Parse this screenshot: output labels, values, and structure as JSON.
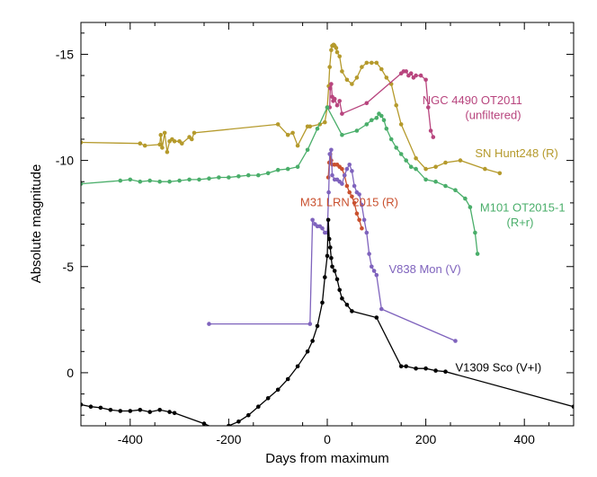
{
  "chart_data": {
    "type": "line",
    "title": "",
    "xlabel": "Days from maximum",
    "ylabel": "Absolute magnitude",
    "xlim": [
      -500,
      500
    ],
    "ylim": [
      2.5,
      -16.5
    ],
    "y_axis_inverted": true,
    "grid": false,
    "x_ticks": [
      -400,
      -200,
      0,
      200,
      400
    ],
    "x_tick_labels": [
      "-400",
      "-200",
      "0",
      "200",
      "400"
    ],
    "y_ticks": [
      -15,
      -10,
      -5,
      0
    ],
    "y_tick_labels": [
      "-15",
      "-10",
      "-5",
      "0"
    ],
    "series": [
      {
        "name": "SN Hunt248 (R)",
        "color": "#b59a2c",
        "markers": true,
        "x": [
          -500,
          -380,
          -370,
          -340,
          -338,
          -335,
          -330,
          -325,
          -320,
          -315,
          -310,
          -300,
          -295,
          -280,
          -275,
          -270,
          -100,
          -80,
          -70,
          -60,
          -40,
          -35,
          -15,
          -5,
          0,
          3,
          5,
          8,
          10,
          13,
          15,
          18,
          20,
          25,
          30,
          40,
          50,
          60,
          70,
          80,
          90,
          100,
          110,
          120,
          130,
          140,
          150,
          180,
          200,
          220,
          240,
          270,
          320,
          350
        ],
        "y": [
          -10.85,
          -10.8,
          -10.7,
          -10.75,
          -11.2,
          -10.6,
          -11.3,
          -10.4,
          -10.9,
          -11.0,
          -10.9,
          -10.9,
          -10.8,
          -11.1,
          -11.0,
          -11.3,
          -11.7,
          -11.2,
          -11.3,
          -10.7,
          -11.6,
          -11.6,
          -11.7,
          -11.8,
          -12.5,
          -13.5,
          -14.4,
          -15.2,
          -15.4,
          -15.45,
          -15.4,
          -15.3,
          -15.1,
          -14.9,
          -14.2,
          -13.8,
          -13.6,
          -13.9,
          -14.4,
          -14.6,
          -14.6,
          -14.6,
          -14.3,
          -13.9,
          -13.6,
          -12.6,
          -11.7,
          -10.1,
          -9.6,
          -9.7,
          -9.9,
          -10.0,
          -9.6,
          -9.4
        ]
      },
      {
        "name": "NGC 4490 OT2011 (unfiltered)",
        "color": "#b8457e",
        "markers": true,
        "x": [
          5,
          6,
          8,
          10,
          12,
          15,
          20,
          25,
          30,
          80,
          150,
          155,
          160,
          165,
          170,
          175,
          180,
          190,
          200,
          205,
          210,
          215
        ],
        "y": [
          -12.5,
          -13.4,
          -13.6,
          -13.0,
          -12.8,
          -12.9,
          -12.6,
          -12.8,
          -12.2,
          -12.7,
          -14.1,
          -14.2,
          -14.2,
          -14.0,
          -14.1,
          -13.9,
          -14.0,
          -14.0,
          -13.8,
          -12.5,
          -11.4,
          -11.1
        ]
      },
      {
        "name": "M101 OT2015-1 (R+r)",
        "color": "#4aae6a",
        "markers": true,
        "x": [
          -500,
          -420,
          -400,
          -380,
          -360,
          -340,
          -320,
          -300,
          -280,
          -260,
          -240,
          -220,
          -200,
          -180,
          -160,
          -140,
          -120,
          -100,
          -80,
          -60,
          -40,
          -20,
          0,
          30,
          60,
          80,
          90,
          100,
          105,
          110,
          115,
          120,
          130,
          140,
          150,
          160,
          170,
          180,
          200,
          220,
          240,
          260,
          280,
          290,
          300,
          305
        ],
        "y": [
          -8.9,
          -9.05,
          -9.1,
          -9.0,
          -9.05,
          -9.0,
          -9.0,
          -9.05,
          -9.1,
          -9.1,
          -9.15,
          -9.2,
          -9.2,
          -9.25,
          -9.3,
          -9.3,
          -9.4,
          -9.55,
          -9.6,
          -9.7,
          -10.5,
          -11.5,
          -12.5,
          -11.2,
          -11.4,
          -11.7,
          -11.9,
          -12.0,
          -12.2,
          -12.1,
          -11.9,
          -11.5,
          -11.0,
          -10.6,
          -10.3,
          -10.0,
          -9.7,
          -9.6,
          -9.1,
          -9.0,
          -8.8,
          -8.6,
          -8.2,
          -7.8,
          -6.6,
          -5.6
        ]
      },
      {
        "name": "M31 LRN 2015 (R)",
        "color": "#c9502e",
        "markers": true,
        "x": [
          2,
          4,
          6,
          8,
          10,
          15,
          20,
          25,
          30,
          35,
          40,
          45,
          50,
          55,
          60,
          65,
          70
        ],
        "y": [
          -9.2,
          -9.9,
          -10.3,
          -10.0,
          -9.8,
          -9.8,
          -9.8,
          -9.7,
          -9.6,
          -9.3,
          -8.8,
          -8.5,
          -8.3,
          -8.0,
          -7.5,
          -7.2,
          -6.8
        ]
      },
      {
        "name": "V838 Mon (V)",
        "color": "#7f63bd",
        "markers": true,
        "x": [
          -240,
          -35,
          -30,
          -25,
          -20,
          -15,
          -10,
          -5,
          0,
          3,
          5,
          8,
          10,
          15,
          20,
          25,
          30,
          35,
          40,
          45,
          50,
          55,
          60,
          65,
          70,
          75,
          80,
          85,
          90,
          95,
          100,
          110,
          260
        ],
        "y": [
          -2.3,
          -2.3,
          -7.2,
          -7.0,
          -6.9,
          -6.9,
          -6.8,
          -6.6,
          -6.6,
          -8.5,
          -10.3,
          -10.5,
          -9.3,
          -9.1,
          -9.1,
          -9.0,
          -8.9,
          -9.3,
          -9.6,
          -9.8,
          -9.5,
          -8.8,
          -8.5,
          -8.4,
          -7.9,
          -7.2,
          -6.6,
          -5.6,
          -5.0,
          -4.8,
          -4.6,
          -3.0,
          -1.5
        ]
      },
      {
        "name": "V1309 Sco (V+I)",
        "color": "#000000",
        "markers": true,
        "x": [
          -500,
          -480,
          -460,
          -440,
          -420,
          -400,
          -380,
          -360,
          -340,
          -320,
          -310,
          -250,
          -230,
          -210,
          -200,
          -180,
          -160,
          -140,
          -120,
          -100,
          -80,
          -60,
          -40,
          -30,
          -20,
          -10,
          -5,
          0,
          2,
          4,
          6,
          8,
          10,
          15,
          20,
          25,
          30,
          40,
          50,
          100,
          150,
          160,
          180,
          200,
          220,
          240,
          500
        ],
        "y": [
          1.5,
          1.6,
          1.65,
          1.75,
          1.8,
          1.8,
          1.75,
          1.85,
          1.75,
          1.85,
          1.9,
          2.4,
          2.6,
          2.6,
          2.5,
          2.3,
          2.0,
          1.6,
          1.2,
          0.8,
          0.3,
          -0.3,
          -1.0,
          -1.5,
          -2.2,
          -3.3,
          -4.5,
          -5.5,
          -7.2,
          -6.3,
          -5.9,
          -5.4,
          -5.0,
          -4.8,
          -4.4,
          -3.9,
          -3.5,
          -3.2,
          -2.9,
          -2.6,
          -0.3,
          -0.3,
          -0.2,
          -0.2,
          -0.1,
          -0.05,
          1.6
        ]
      }
    ],
    "annotations": [
      {
        "text": "NGC 4490 OT2011",
        "series": "NGC 4490 OT2011 (unfiltered)",
        "x": 193,
        "y": -12.65,
        "color": "#b8457e"
      },
      {
        "text": "(unfiltered)",
        "series": "NGC 4490 OT2011 (unfiltered)",
        "x": 280,
        "y": -11.95,
        "color": "#b8457e"
      },
      {
        "text": "SN Hunt248 (R)",
        "series": "SN Hunt248 (R)",
        "x": 300,
        "y": -10.15,
        "color": "#b59a2c"
      },
      {
        "text": "M31 LRN 2015 (R)",
        "series": "M31 LRN 2015 (R)",
        "x": -55,
        "y": -7.85,
        "color": "#c9502e"
      },
      {
        "text": "M101 OT2015-1",
        "series": "M101 OT2015-1 (R+r)",
        "x": 310,
        "y": -7.6,
        "color": "#4aae6a"
      },
      {
        "text": "(R+r)",
        "series": "M101 OT2015-1 (R+r)",
        "x": 364,
        "y": -6.9,
        "color": "#4aae6a"
      },
      {
        "text": "V838 Mon (V)",
        "series": "V838 Mon (V)",
        "x": 125,
        "y": -4.7,
        "color": "#7f63bd"
      },
      {
        "text": "V1309 Sco (V+I)",
        "series": "V1309 Sco (V+I)",
        "x": 260,
        "y": -0.05,
        "color": "#000000"
      }
    ]
  }
}
